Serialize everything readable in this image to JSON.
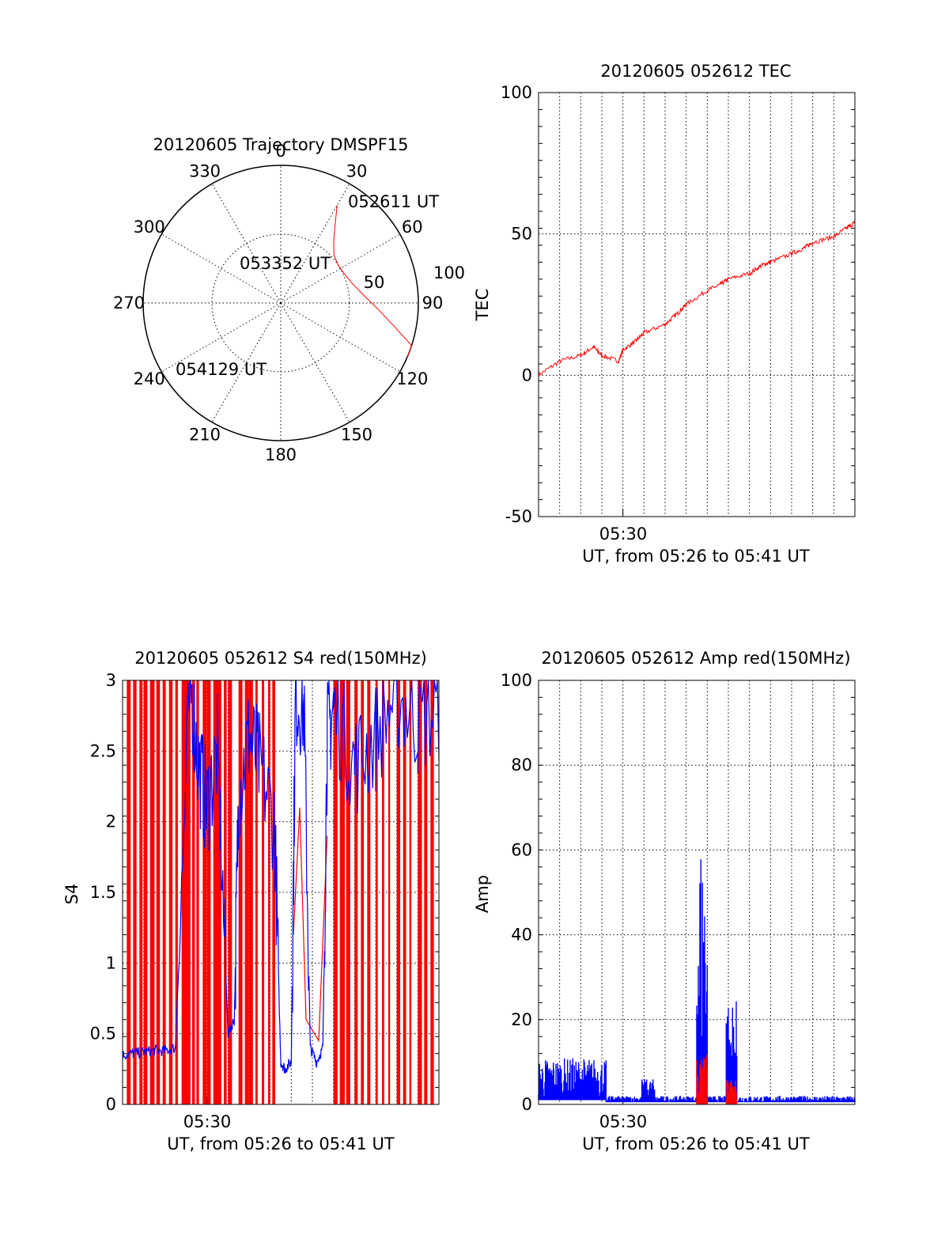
{
  "colors": {
    "red": "#ff0000",
    "blue": "#0000ff",
    "axis": "#000000"
  },
  "chart_data": [
    {
      "type": "polar",
      "title": "20120605 Trajectory DMSPF15",
      "azimuth_labels": [
        "0",
        "30",
        "60",
        "90",
        "120",
        "150",
        "180",
        "210",
        "240",
        "270",
        "300",
        "330"
      ],
      "radius_labels": [
        "50",
        "100"
      ],
      "trajectory_labels": [
        "052611 UT",
        "053352 UT",
        "054129 UT"
      ],
      "trajectory": [
        {
          "az": 30,
          "zenith": 82
        },
        {
          "az": 34,
          "zenith": 71
        },
        {
          "az": 40,
          "zenith": 60
        },
        {
          "az": 48,
          "zenith": 52
        },
        {
          "az": 57,
          "zenith": 50
        },
        {
          "az": 66,
          "zenith": 51
        },
        {
          "az": 75,
          "zenith": 54
        },
        {
          "az": 84,
          "zenith": 60
        },
        {
          "az": 93,
          "zenith": 70
        },
        {
          "az": 102,
          "zenith": 85
        },
        {
          "az": 108,
          "zenith": 100
        },
        {
          "az": 113,
          "zenith": 115
        }
      ]
    },
    {
      "type": "line",
      "title": "20120605 052612 TEC",
      "ylabel": "TEC",
      "xlabel": "UT, from 05:26 to 05:41 UT",
      "x_tick_label": "05:30",
      "ylim": [
        -50,
        100
      ],
      "y_ticks": [
        "-50",
        "0",
        "50",
        "100"
      ],
      "series": [
        {
          "color": "red",
          "x_minutes": [
            0,
            1,
            2,
            2.6,
            3,
            3.8,
            4,
            4.6,
            5,
            6,
            6.6,
            7,
            8,
            8.6,
            9,
            10,
            10.6,
            11,
            12,
            12.6,
            13,
            14,
            14.6,
            15
          ],
          "values": [
            0,
            5,
            7,
            10,
            7,
            5,
            9,
            12,
            15,
            18,
            22,
            25,
            30,
            32,
            34,
            36,
            39,
            40,
            43,
            45,
            47,
            49,
            52,
            54
          ]
        }
      ]
    },
    {
      "type": "line",
      "title": "20120605 052612 S4 red(150MHz)",
      "ylabel": "S4",
      "xlabel": "UT, from 05:26 to 05:41 UT",
      "x_tick_label": "05:30",
      "ylim": [
        0,
        3
      ],
      "y_ticks": [
        "0",
        "0.5",
        "1",
        "1.5",
        "2",
        "2.5",
        "3"
      ],
      "series": [
        {
          "color": "blue",
          "x_minutes": [
            0,
            0.5,
            1,
            1.5,
            2,
            2.5,
            3.2,
            3.6,
            4,
            4.5,
            5,
            5.3,
            5.5,
            6,
            6.5,
            7.2,
            7.5,
            7.7,
            8,
            8.2,
            8.6,
            8.9,
            9.2,
            9.5,
            9.7,
            10,
            11,
            12,
            13,
            14,
            15
          ],
          "values": [
            0.35,
            0.36,
            0.37,
            0.38,
            0.38,
            0.4,
            3,
            2.4,
            2.1,
            2.5,
            0.5,
            0.6,
            2.2,
            2.6,
            2.4,
            2.0,
            0.3,
            0.25,
            0.3,
            2.9,
            2.8,
            0.4,
            0.3,
            0.4,
            2.6,
            2.8,
            2.4,
            2.6,
            2.9,
            2.7,
            2.8
          ]
        }
      ],
      "red_spikes_minutes": [
        0.2,
        0.5,
        0.8,
        1.0,
        1.3,
        1.6,
        1.9,
        2.2,
        2.5,
        2.8,
        3.0,
        3.3,
        3.5,
        3.8,
        4.0,
        4.3,
        4.5,
        4.8,
        5.0,
        5.5,
        5.8,
        6.0,
        6.3,
        6.6,
        6.9,
        7.1,
        10.0,
        10.3,
        10.6,
        11.0,
        11.3,
        11.6,
        12.0,
        12.3,
        12.6,
        13.0,
        13.3,
        13.6,
        14.0,
        14.3,
        14.6
      ],
      "red_mid": [
        {
          "x": 8.1,
          "y": 1.2
        },
        {
          "x": 8.4,
          "y": 2.1
        },
        {
          "x": 8.7,
          "y": 0.6
        },
        {
          "x": 9.3,
          "y": 0.45
        },
        {
          "x": 9.7,
          "y": 1.9
        }
      ]
    },
    {
      "type": "line",
      "title": "20120605 052612 Amp red(150MHz)",
      "ylabel": "Amp",
      "xlabel": "UT, from 05:26 to 05:41 UT",
      "x_tick_label": "05:30",
      "ylim": [
        0,
        100
      ],
      "y_ticks": [
        "0",
        "20",
        "40",
        "60",
        "80",
        "100"
      ],
      "series": [
        {
          "color": "blue",
          "segments": [
            {
              "x0": 0,
              "x1": 3.2,
              "low": 1,
              "high": 11
            },
            {
              "x0": 4.9,
              "x1": 5.5,
              "low": 1,
              "high": 6
            },
            {
              "x0": 7.5,
              "x1": 8.0,
              "low": 1,
              "high": 65
            },
            {
              "x0": 8.9,
              "x1": 9.4,
              "low": 1,
              "high": 25
            },
            {
              "x0": 3.2,
              "x1": 15,
              "low": 0.5,
              "high": 2
            }
          ]
        },
        {
          "color": "red",
          "segments": [
            {
              "x0": 7.5,
              "x1": 8.0,
              "low": 0,
              "high": 12
            },
            {
              "x0": 8.9,
              "x1": 9.4,
              "low": 0,
              "high": 6
            }
          ]
        }
      ]
    }
  ]
}
